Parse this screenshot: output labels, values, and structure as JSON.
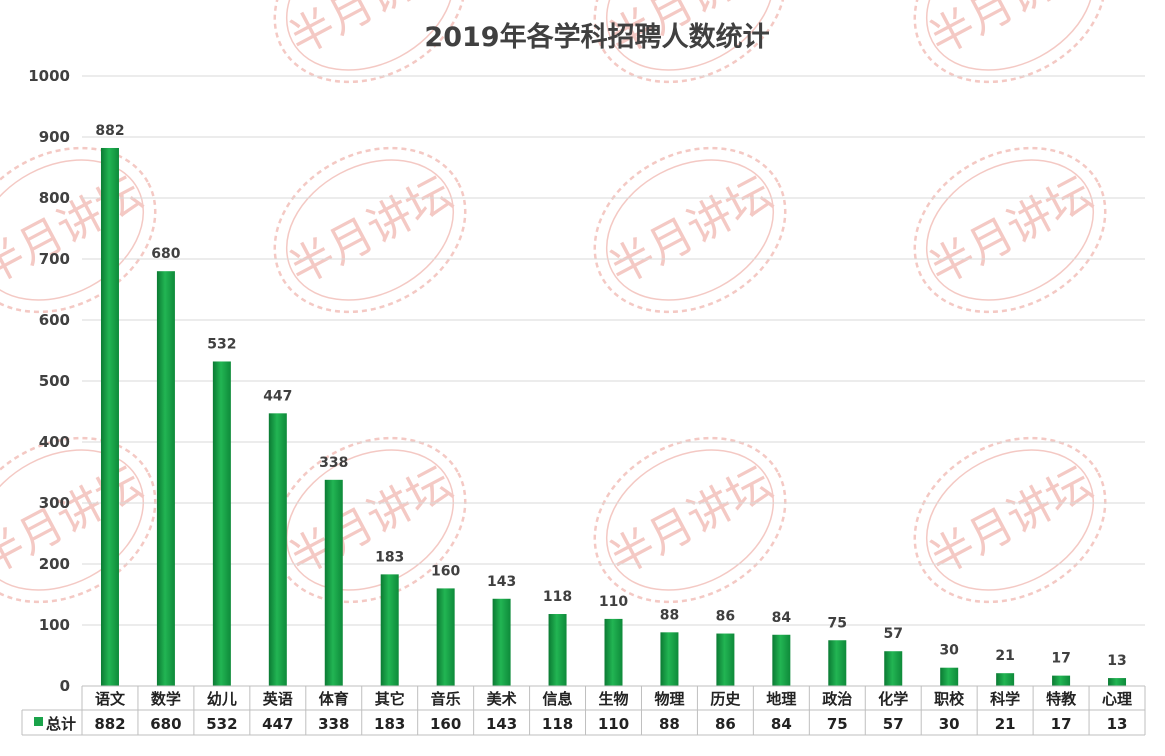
{
  "chart_data": {
    "type": "bar",
    "title": "2019年各学科招聘人数统计",
    "categories": [
      "语文",
      "数学",
      "幼儿",
      "英语",
      "体育",
      "其它",
      "音乐",
      "美术",
      "信息",
      "生物",
      "物理",
      "历史",
      "地理",
      "政治",
      "化学",
      "职校",
      "科学",
      "特教",
      "心理"
    ],
    "series": [
      {
        "name": "总计",
        "values": [
          882,
          680,
          532,
          447,
          338,
          183,
          160,
          143,
          118,
          110,
          88,
          86,
          84,
          75,
          57,
          30,
          21,
          17,
          13
        ]
      }
    ],
    "ylim": [
      0,
      1000
    ],
    "yticks": [
      0,
      100,
      200,
      300,
      400,
      500,
      600,
      700,
      800,
      900,
      1000
    ],
    "grid": true,
    "legend": "data-table",
    "data_labels": true,
    "bar_color": "#1aa34a"
  },
  "watermark": {
    "text": "半月讲坛",
    "color": "#f4c9c4"
  }
}
